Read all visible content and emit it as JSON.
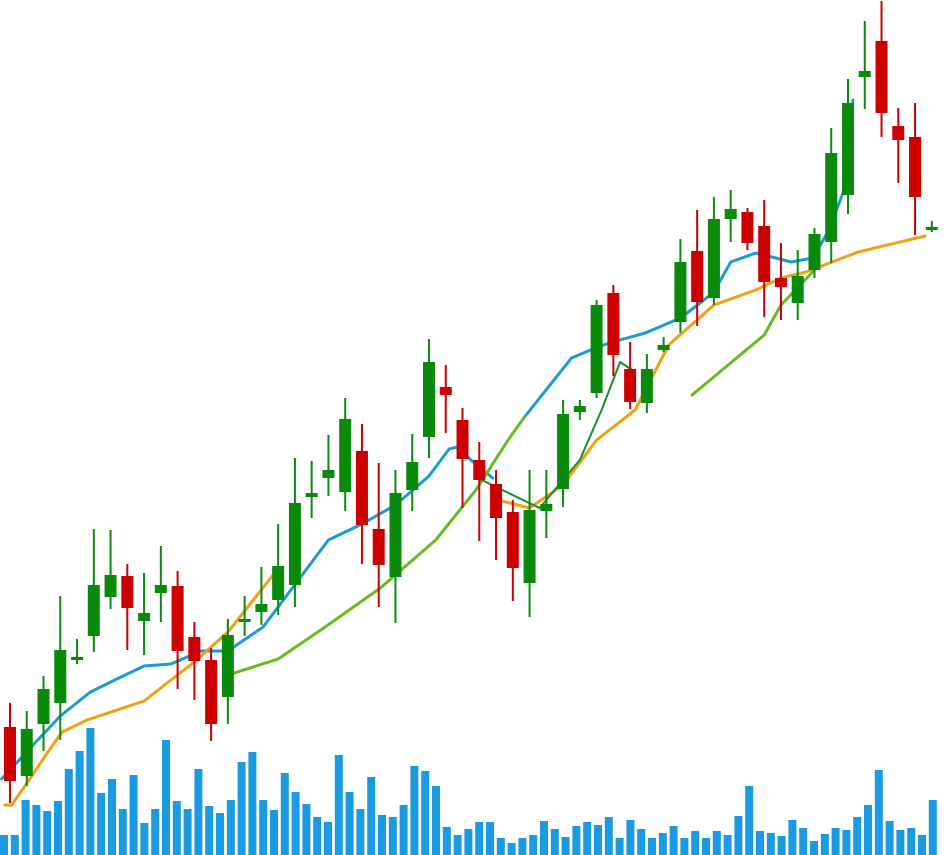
{
  "chart_data": {
    "type": "candlestick",
    "title": "",
    "xlabel": "",
    "ylabel": "",
    "axes_shown": false,
    "grid": false,
    "legend": "none",
    "price_range": [
      0,
      85.5
    ],
    "colors": {
      "up": "#0a8a0a",
      "down": "#cc0000",
      "volume": "#1a9ae0",
      "ma_blue": "#1a9ad6",
      "ma_orange": "#f0a010",
      "ma_lime": "#66bb22",
      "ma_darkgreen": "#12902a"
    },
    "candles": [
      {
        "o": 12.8,
        "h": 15.2,
        "l": 5.2,
        "c": 7.4
      },
      {
        "o": 7.9,
        "h": 14.4,
        "l": 6.9,
        "c": 12.6
      },
      {
        "o": 13.1,
        "h": 17.9,
        "l": 10.4,
        "c": 16.6
      },
      {
        "o": 15.2,
        "h": 25.9,
        "l": 11.5,
        "c": 20.5
      },
      {
        "o": 19.6,
        "h": 21.6,
        "l": 19.1,
        "c": 19.8
      },
      {
        "o": 21.9,
        "h": 32.6,
        "l": 20.3,
        "c": 27.0
      },
      {
        "o": 25.8,
        "h": 32.5,
        "l": 24.6,
        "c": 28.0
      },
      {
        "o": 27.9,
        "h": 29.1,
        "l": 20.5,
        "c": 24.7
      },
      {
        "o": 23.4,
        "h": 28.2,
        "l": 20.0,
        "c": 24.2
      },
      {
        "o": 26.2,
        "h": 30.9,
        "l": 23.3,
        "c": 27.0
      },
      {
        "o": 26.9,
        "h": 28.4,
        "l": 16.6,
        "c": 20.4
      },
      {
        "o": 21.8,
        "h": 23.3,
        "l": 15.5,
        "c": 19.4
      },
      {
        "o": 19.5,
        "h": 20.7,
        "l": 11.4,
        "c": 13.1
      },
      {
        "o": 15.8,
        "h": 23.6,
        "l": 13.1,
        "c": 22.0
      },
      {
        "o": 23.3,
        "h": 25.9,
        "l": 21.9,
        "c": 23.6
      },
      {
        "o": 24.3,
        "h": 28.8,
        "l": 23.0,
        "c": 25.1
      },
      {
        "o": 25.5,
        "h": 33.1,
        "l": 24.0,
        "c": 28.9
      },
      {
        "o": 27.0,
        "h": 39.7,
        "l": 24.8,
        "c": 35.2
      },
      {
        "o": 35.8,
        "h": 39.4,
        "l": 33.7,
        "c": 36.2
      },
      {
        "o": 37.7,
        "h": 42.0,
        "l": 35.9,
        "c": 38.5
      },
      {
        "o": 36.3,
        "h": 45.7,
        "l": 34.4,
        "c": 43.6
      },
      {
        "o": 40.4,
        "h": 43.1,
        "l": 29.1,
        "c": 33.0
      },
      {
        "o": 32.6,
        "h": 39.2,
        "l": 24.8,
        "c": 29.0
      },
      {
        "o": 27.8,
        "h": 38.5,
        "l": 23.2,
        "c": 36.2
      },
      {
        "o": 36.5,
        "h": 42.1,
        "l": 34.4,
        "c": 39.3
      },
      {
        "o": 41.8,
        "h": 51.6,
        "l": 39.7,
        "c": 49.3
      },
      {
        "o": 46.8,
        "h": 49.0,
        "l": 42.2,
        "c": 46.0
      },
      {
        "o": 43.5,
        "h": 44.7,
        "l": 34.7,
        "c": 39.6
      },
      {
        "o": 39.5,
        "h": 41.3,
        "l": 31.4,
        "c": 37.5
      },
      {
        "o": 37.1,
        "h": 38.5,
        "l": 29.5,
        "c": 33.7
      },
      {
        "o": 34.3,
        "h": 35.5,
        "l": 25.4,
        "c": 28.7
      },
      {
        "o": 27.2,
        "h": 38.5,
        "l": 23.8,
        "c": 34.5
      },
      {
        "o": 34.4,
        "h": 38.5,
        "l": 31.7,
        "c": 35.1
      },
      {
        "o": 36.6,
        "h": 45.5,
        "l": 34.8,
        "c": 44.1
      },
      {
        "o": 44.3,
        "h": 45.5,
        "l": 43.5,
        "c": 44.9
      },
      {
        "o": 46.2,
        "h": 55.5,
        "l": 45.7,
        "c": 55.0
      },
      {
        "o": 56.2,
        "h": 57.0,
        "l": 47.9,
        "c": 50.0
      },
      {
        "o": 48.6,
        "h": 51.3,
        "l": 44.6,
        "c": 45.3
      },
      {
        "o": 45.2,
        "h": 50.1,
        "l": 44.2,
        "c": 48.6
      },
      {
        "o": 50.5,
        "h": 51.8,
        "l": 50.3,
        "c": 51.0
      },
      {
        "o": 53.3,
        "h": 61.6,
        "l": 52.2,
        "c": 59.3
      },
      {
        "o": 60.4,
        "h": 64.5,
        "l": 52.9,
        "c": 55.3
      },
      {
        "o": 55.7,
        "h": 65.8,
        "l": 55.0,
        "c": 63.6
      },
      {
        "o": 63.6,
        "h": 66.5,
        "l": 61.3,
        "c": 64.6
      },
      {
        "o": 64.3,
        "h": 64.7,
        "l": 60.5,
        "c": 61.2
      },
      {
        "o": 62.9,
        "h": 65.5,
        "l": 53.8,
        "c": 57.3
      },
      {
        "o": 57.7,
        "h": 61.2,
        "l": 53.5,
        "c": 56.8
      },
      {
        "o": 55.2,
        "h": 60.5,
        "l": 53.5,
        "c": 57.9
      },
      {
        "o": 58.5,
        "h": 62.7,
        "l": 57.7,
        "c": 62.1
      },
      {
        "o": 61.3,
        "h": 72.7,
        "l": 59.2,
        "c": 70.2
      },
      {
        "o": 66.0,
        "h": 77.6,
        "l": 64.1,
        "c": 75.2
      },
      {
        "o": 77.8,
        "h": 83.4,
        "l": 74.6,
        "c": 78.4
      },
      {
        "o": 81.4,
        "h": 85.4,
        "l": 71.8,
        "c": 74.2
      },
      {
        "o": 72.9,
        "h": 74.7,
        "l": 67.2,
        "c": 71.5
      },
      {
        "o": 71.8,
        "h": 75.2,
        "l": 62.0,
        "c": 65.8
      },
      {
        "o": 62.6,
        "h": 63.4,
        "l": 62.3,
        "c": 62.8
      }
    ],
    "volume": [
      20,
      20,
      55,
      50,
      44,
      54,
      86,
      104,
      127,
      62,
      76,
      46,
      80,
      32,
      46,
      115,
      54,
      46,
      86,
      49,
      42,
      55,
      93,
      103,
      55,
      45,
      82,
      63,
      51,
      38,
      33,
      100,
      63,
      46,
      78,
      40,
      38,
      50,
      89,
      84,
      69,
      28,
      20,
      26,
      33,
      33,
      17,
      12,
      17,
      20,
      34,
      26,
      18,
      29,
      33,
      30,
      38,
      17,
      35,
      26,
      17,
      22,
      29,
      17,
      24,
      17,
      24,
      20,
      39,
      69,
      24,
      22,
      19,
      35,
      27,
      14,
      21,
      27,
      25,
      38,
      50,
      85,
      34,
      25,
      27,
      20,
      55
    ],
    "moving_averages": [
      {
        "color_key": "ma_blue",
        "segments": [
          [
            [
              -0.5,
              7.6
            ],
            [
              1.1,
              10.5
            ],
            [
              3,
              13.9
            ],
            [
              4.8,
              16.3
            ],
            [
              6.5,
              17.7
            ],
            [
              8,
              18.9
            ],
            [
              9.6,
              19.1
            ],
            [
              11.4,
              20.4
            ],
            [
              13,
              20.4
            ],
            [
              15.1,
              22.8
            ],
            [
              19,
              31.5
            ],
            [
              21,
              33.1
            ],
            [
              23,
              35.0
            ],
            [
              25,
              37.9
            ],
            [
              26.2,
              40.6
            ],
            [
              26.7,
              40.8
            ],
            [
              27.5,
              39.5
            ],
            [
              28.8,
              37.7
            ]
          ],
          [
            [
              30.7,
              43.8
            ],
            [
              33.5,
              49.7
            ],
            [
              35.2,
              50.9
            ],
            [
              36.6,
              51.6
            ],
            [
              37.9,
              52.2
            ],
            [
              40,
              53.7
            ],
            [
              41.1,
              55.1
            ],
            [
              42,
              56.3
            ],
            [
              43,
              59.3
            ],
            [
              44.5,
              60.2
            ],
            [
              45.7,
              59.7
            ],
            [
              46.6,
              59.3
            ],
            [
              47.9,
              59.7
            ],
            [
              48.8,
              62.3
            ],
            [
              49.7,
              66.2
            ],
            [
              50.3,
              75.5
            ]
          ]
        ]
      },
      {
        "color_key": "ma_orange",
        "segments": [
          [
            [
              -0.3,
              5.0
            ],
            [
              0.1,
              5.0
            ],
            [
              1.1,
              7.4
            ],
            [
              2.1,
              9.9
            ],
            [
              3.1,
              12.3
            ],
            [
              4.6,
              13.5
            ],
            [
              8,
              15.4
            ],
            [
              9.6,
              17.5
            ],
            [
              11,
              19.3
            ],
            [
              13,
              22.3
            ],
            [
              15.7,
              28.0
            ]
          ],
          [
            [
              29.1,
              35.5
            ],
            [
              31,
              34.7
            ],
            [
              33,
              37.0
            ],
            [
              35,
              41.5
            ],
            [
              37.3,
              44.5
            ],
            [
              39.3,
              51.0
            ],
            [
              42,
              55.0
            ],
            [
              44.5,
              56.5
            ],
            [
              46,
              57.7
            ],
            [
              47.5,
              58.3
            ],
            [
              50.6,
              60.3
            ],
            [
              54.6,
              61.9
            ]
          ]
        ]
      },
      {
        "color_key": "ma_lime",
        "segments": [
          [
            [
              13,
              18.0
            ],
            [
              16,
              19.6
            ],
            [
              18.8,
              22.8
            ],
            [
              22.1,
              26.7
            ],
            [
              25.4,
              31.5
            ],
            [
              27.8,
              36.5
            ],
            [
              29.8,
              41.7
            ],
            [
              30.7,
              43.8
            ]
          ],
          [
            [
              40.7,
              46.0
            ],
            [
              45,
              52.0
            ],
            [
              46,
              55.0
            ],
            [
              48,
              58.5
            ]
          ]
        ]
      },
      {
        "color_key": "ma_darkgreen",
        "segments": [
          [
            [
              27.9,
              37.7
            ],
            [
              31.6,
              34.7
            ],
            [
              34,
              39.5
            ],
            [
              35.3,
              44.5
            ],
            [
              36.4,
              49.3
            ],
            [
              37.3,
              48.3
            ]
          ]
        ]
      }
    ]
  }
}
